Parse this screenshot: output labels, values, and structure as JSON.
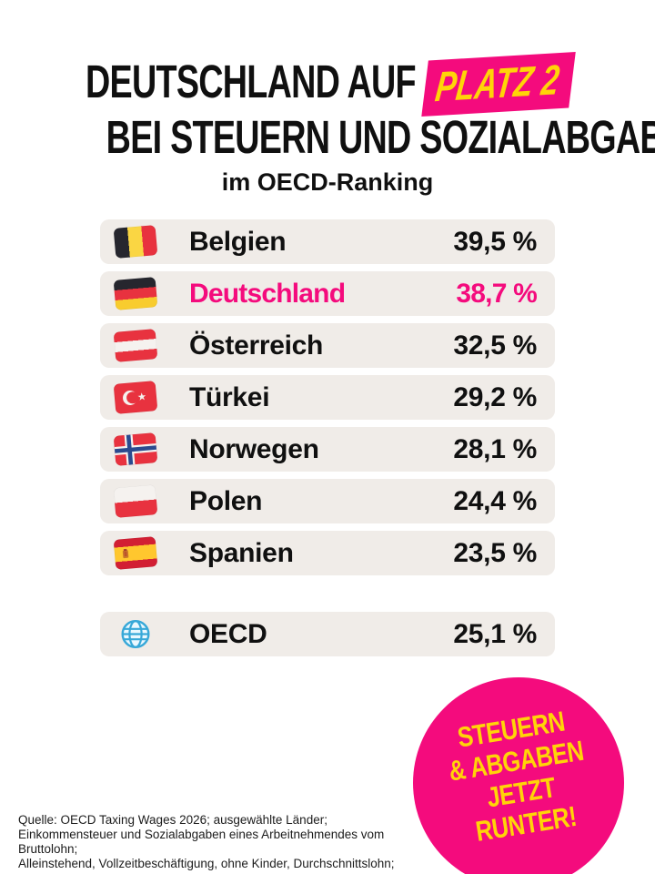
{
  "title": {
    "line1_prefix": "DEUTSCHLAND AUF",
    "line1_highlight": "PLATZ 2",
    "line2": "BEI STEUERN UND SOZIALABGABEN",
    "subtitle": "im OECD-Ranking"
  },
  "colors": {
    "accent_pink": "#f40b7d",
    "accent_yellow": "#ffd408",
    "row_background": "#f0ece8",
    "text": "#101010"
  },
  "chart_data": {
    "type": "table",
    "title": "Deutschland auf Platz 2 bei Steuern und Sozialabgaben im OECD-Ranking",
    "categories": [
      "Belgien",
      "Deutschland",
      "Österreich",
      "Türkei",
      "Norwegen",
      "Polen",
      "Spanien",
      "OECD"
    ],
    "values": [
      39.5,
      38.7,
      32.5,
      29.2,
      28.1,
      24.4,
      23.5,
      25.1
    ],
    "value_labels": [
      "39,5 %",
      "38,7 %",
      "32,5 %",
      "29,2 %",
      "28,1 %",
      "24,4 %",
      "23,5 %",
      "25,1 %"
    ],
    "unit": "%",
    "highlighted_category": "Deutschland"
  },
  "ranking": {
    "rows": [
      {
        "flag": "belgium",
        "country": "Belgien",
        "value": "39,5 %",
        "highlight": false,
        "separated": false
      },
      {
        "flag": "germany",
        "country": "Deutschland",
        "value": "38,7 %",
        "highlight": true,
        "separated": false
      },
      {
        "flag": "austria",
        "country": "Österreich",
        "value": "32,5 %",
        "highlight": false,
        "separated": false
      },
      {
        "flag": "turkey",
        "country": "Türkei",
        "value": "29,2 %",
        "highlight": false,
        "separated": false
      },
      {
        "flag": "norway",
        "country": "Norwegen",
        "value": "28,1 %",
        "highlight": false,
        "separated": false
      },
      {
        "flag": "poland",
        "country": "Polen",
        "value": "24,4 %",
        "highlight": false,
        "separated": false
      },
      {
        "flag": "spain",
        "country": "Spanien",
        "value": "23,5 %",
        "highlight": false,
        "separated": false
      },
      {
        "flag": "globe",
        "country": "OECD",
        "value": "25,1 %",
        "highlight": false,
        "separated": true
      }
    ]
  },
  "badge": {
    "lines": [
      "STEUERN",
      "& ABGABEN",
      "JETZT",
      "RUNTER!"
    ]
  },
  "source": {
    "lines": [
      "Quelle: OECD Taxing Wages 2026; ausgewählte Länder;",
      "Einkommensteuer und Sozialabgaben eines Arbeitnehmendes vom Bruttolohn;",
      "Alleinstehend, Vollzeitbeschäftigung, ohne Kinder, Durchschnittslohn;"
    ]
  }
}
